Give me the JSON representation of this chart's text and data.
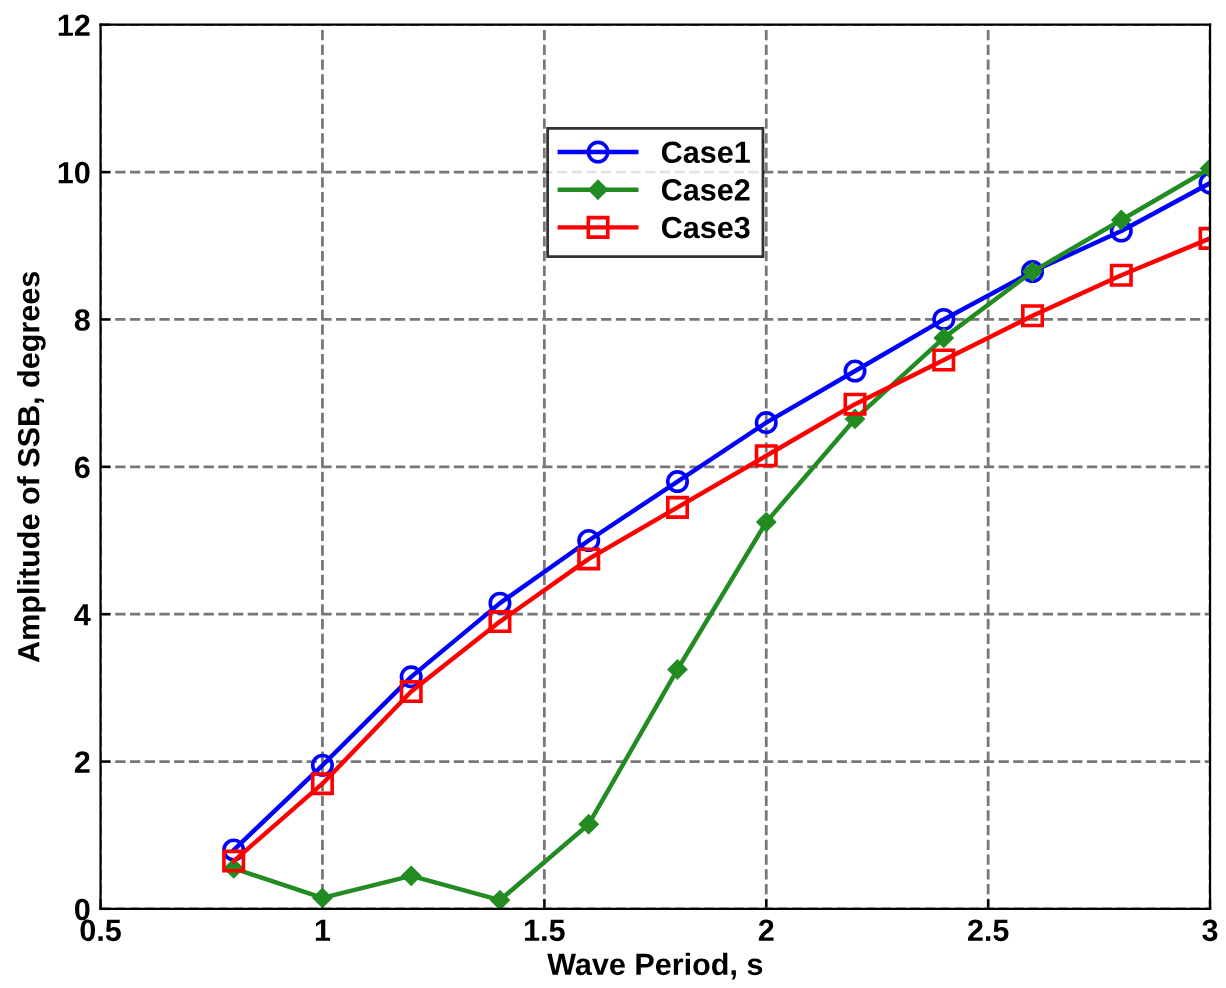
{
  "chart_data": {
    "type": "line",
    "xlabel": "Wave Period, s",
    "ylabel": "Amplitude of SSB, degrees",
    "x": [
      0.8,
      1.0,
      1.2,
      1.4,
      1.6,
      1.8,
      2.0,
      2.2,
      2.4,
      2.6,
      2.8,
      3.0
    ],
    "series": [
      {
        "name": "Case1",
        "color": "#0000ff",
        "marker": "circle",
        "values": [
          0.8,
          1.95,
          3.15,
          4.15,
          5.0,
          5.8,
          6.6,
          7.3,
          8.0,
          8.65,
          9.2,
          9.85
        ]
      },
      {
        "name": "Case2",
        "color": "#228b22",
        "marker": "diamond",
        "values": [
          0.55,
          0.15,
          0.45,
          0.12,
          1.15,
          3.25,
          5.25,
          6.65,
          7.75,
          8.65,
          9.35,
          10.05
        ]
      },
      {
        "name": "Case3",
        "color": "#ff0000",
        "marker": "square",
        "values": [
          0.65,
          1.7,
          2.95,
          3.9,
          4.75,
          5.45,
          6.15,
          6.85,
          7.45,
          8.05,
          8.6,
          9.1
        ]
      }
    ],
    "xlim": [
      0.5,
      3
    ],
    "xticks": [
      0.5,
      1,
      1.5,
      2,
      2.5,
      3
    ],
    "ylim": [
      0,
      12
    ],
    "yticks": [
      0,
      2,
      4,
      6,
      8,
      10,
      12
    ],
    "grid": true,
    "legend": "top"
  }
}
